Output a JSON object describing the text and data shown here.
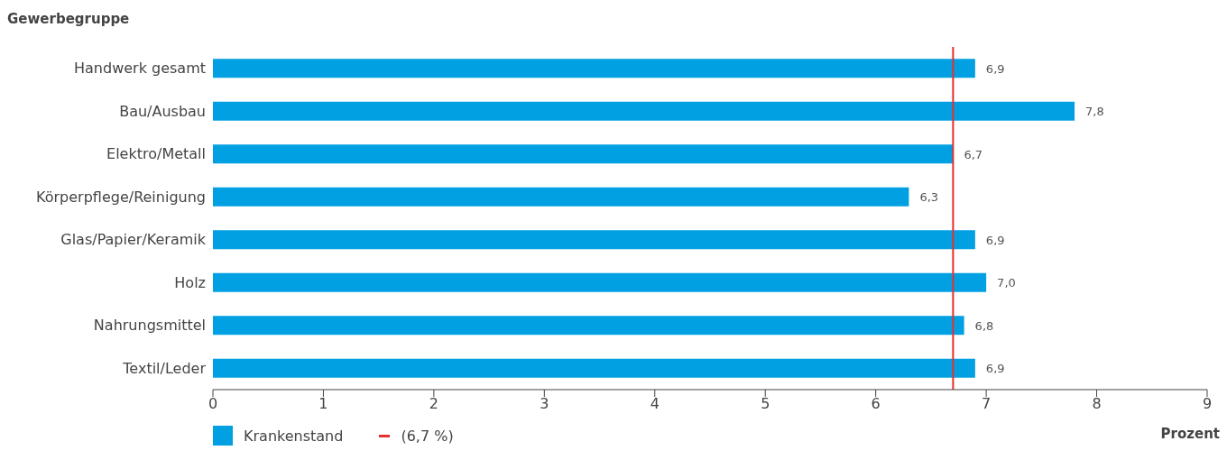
{
  "chart_data": {
    "type": "bar",
    "orientation": "horizontal",
    "ylabel": "Gewerbegruppe",
    "xlabel": "Prozent",
    "categories": [
      "Handwerk gesamt",
      "Bau/Ausbau",
      "Elektro/Metall",
      "Körperpflege/Reinigung",
      "Glas/Papier/Keramik",
      "Holz",
      "Nahrungsmittel",
      "Textil/Leder"
    ],
    "series": [
      {
        "name": "Krankenstand",
        "color": "#00a0e3",
        "values": [
          6.9,
          7.8,
          6.7,
          6.3,
          6.9,
          7.0,
          6.8,
          6.9
        ],
        "value_labels": [
          "6,9",
          "7,8",
          "6,7",
          "6,3",
          "6,9",
          "7,0",
          "6,8",
          "6,9"
        ]
      }
    ],
    "xlim": [
      0,
      9
    ],
    "xticks": [
      0,
      1,
      2,
      3,
      4,
      5,
      6,
      7,
      8,
      9
    ],
    "ref_lines": [
      {
        "axis": "x",
        "value": 6.7,
        "label": "(6,7 %)",
        "color": "#e2312f"
      }
    ],
    "legend": "bottom left",
    "grid": false
  }
}
